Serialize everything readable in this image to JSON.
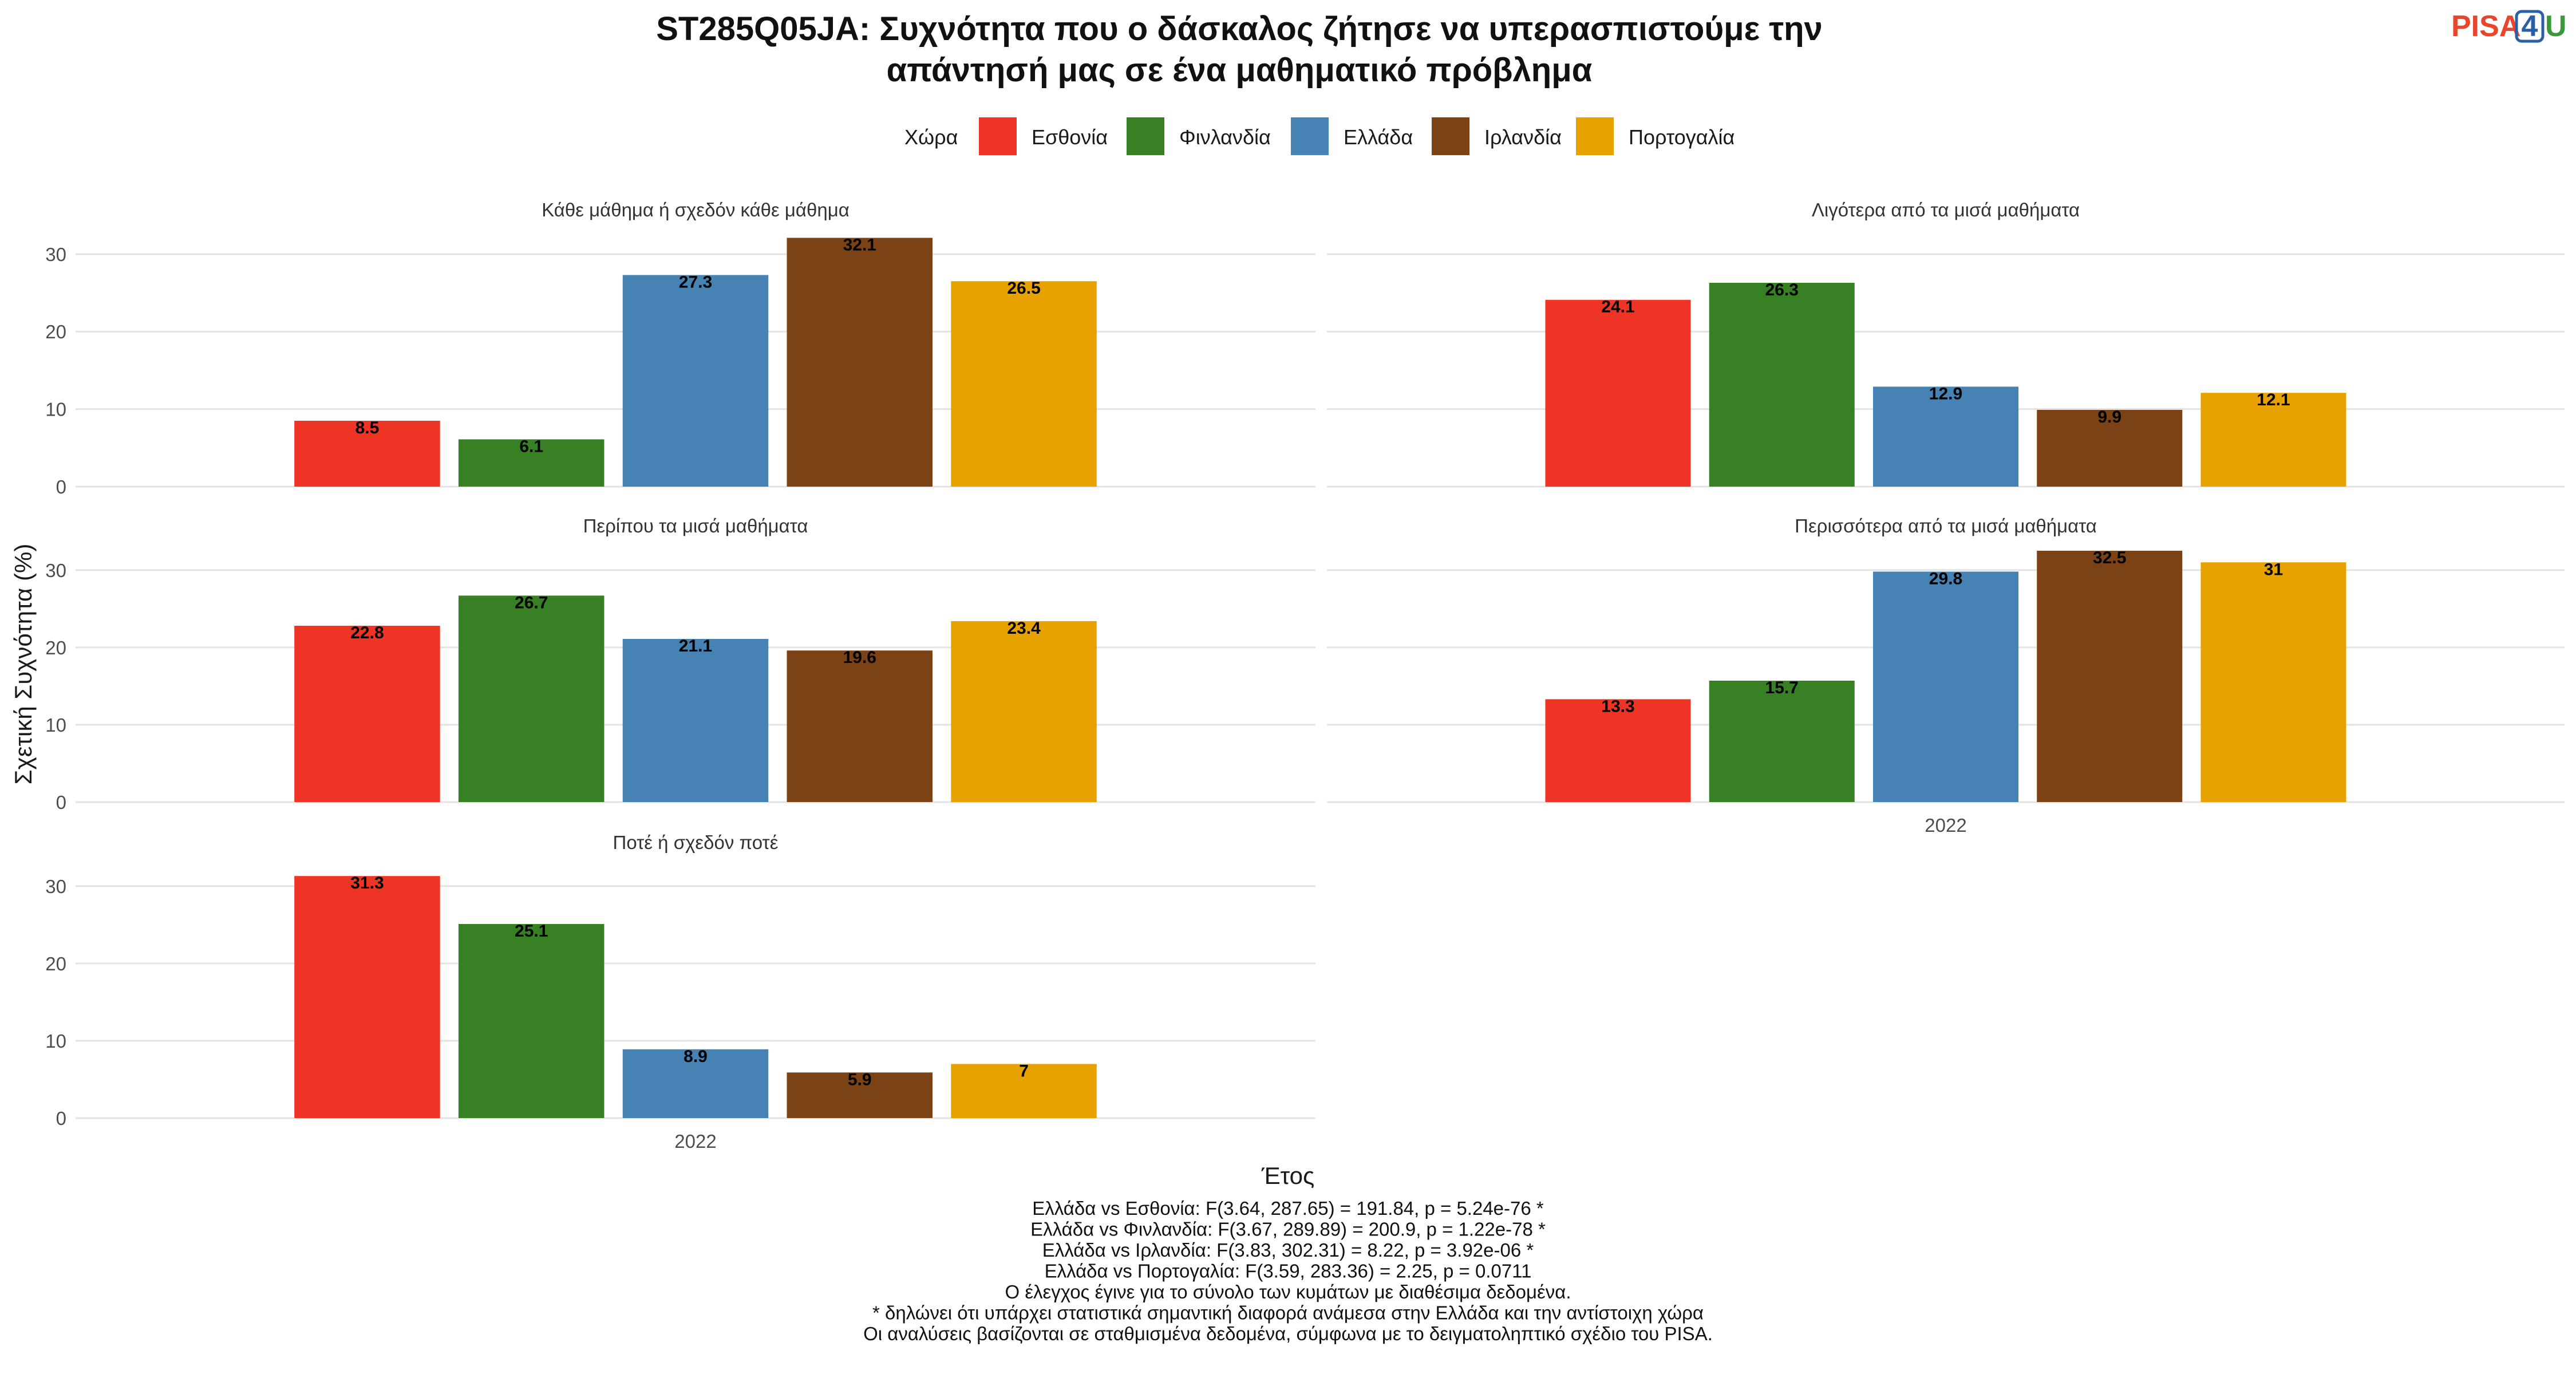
{
  "title": {
    "line1": "ST285Q05JA: Συχνότητα που ο δάσκαλος ζήτησε να υπερασπιστούμε την",
    "line2": "απάντησή μας σε ένα μαθηματικό πρόβλημα"
  },
  "logo": {
    "part1": "PISA",
    "part2": "4",
    "part3": "U",
    "color1": "#e8452c",
    "color2": "#2a5fa8",
    "color3": "#3a9a3a"
  },
  "legend": {
    "title": "Χώρα",
    "items": [
      {
        "label": "Εσθονία",
        "color": "#EE3424"
      },
      {
        "label": "Φινλανδία",
        "color": "#378024"
      },
      {
        "label": "Ελλάδα",
        "color": "#4682B4"
      },
      {
        "label": "Ιρλανδία",
        "color": "#7B4216"
      },
      {
        "label": "Πορτογαλία",
        "color": "#E8A200"
      }
    ]
  },
  "chart_data": {
    "type": "bar",
    "ylabel": "Σχετική Συχνότητα (%)",
    "xlabel": "Έτος",
    "x_category": "2022",
    "ylim": [
      0,
      32.5
    ],
    "yticks": [
      0,
      10,
      20,
      30
    ],
    "series_names": [
      "Εσθονία",
      "Φινλανδία",
      "Ελλάδα",
      "Ιρλανδία",
      "Πορτογαλία"
    ],
    "panels": [
      {
        "title": "Κάθε μάθημα ή σχεδόν κάθε μάθημα",
        "values": [
          8.5,
          6.1,
          27.3,
          32.1,
          26.5
        ],
        "labels": [
          "8.5",
          "6.1",
          "27.3",
          "32.1",
          "26.5"
        ]
      },
      {
        "title": "Λιγότερα από τα μισά μαθήματα",
        "values": [
          24.1,
          26.3,
          12.9,
          9.9,
          12.1
        ],
        "labels": [
          "24.1",
          "26.3",
          "12.9",
          "9.9",
          "12.1"
        ]
      },
      {
        "title": "Περίπου τα μισά μαθήματα",
        "values": [
          22.8,
          26.7,
          21.1,
          19.6,
          23.4
        ],
        "labels": [
          "22.8",
          "26.7",
          "21.1",
          "19.6",
          "23.4"
        ]
      },
      {
        "title": "Περισσότερα από τα μισά μαθήματα",
        "values": [
          13.3,
          15.7,
          29.8,
          32.5,
          31
        ],
        "labels": [
          "13.3",
          "15.7",
          "29.8",
          "32.5",
          "31"
        ]
      },
      {
        "title": "Ποτέ ή σχεδόν ποτέ",
        "values": [
          31.3,
          25.1,
          8.9,
          5.9,
          7
        ],
        "labels": [
          "31.3",
          "25.1",
          "8.9",
          "5.9",
          "7"
        ]
      }
    ]
  },
  "caption": [
    "Ελλάδα vs Εσθονία: F(3.64, 287.65) = 191.84, p = 5.24e-76 *",
    "Ελλάδα vs Φινλανδία: F(3.67, 289.89) = 200.9, p = 1.22e-78 *",
    "Ελλάδα vs Ιρλανδία: F(3.83, 302.31) = 8.22, p = 3.92e-06 *",
    "Ελλάδα vs Πορτογαλία: F(3.59, 283.36) = 2.25, p = 0.0711",
    "Ο έλεγχος έγινε για το σύνολο των κυμάτων με διαθέσιμα δεδομένα.",
    "* δηλώνει ότι υπάρχει στατιστικά σημαντική διαφορά ανάμεσα στην Ελλάδα και την αντίστοιχη χώρα",
    "Οι αναλύσεις βασίζονται σε σταθμισμένα δεδομένα, σύμφωνα με το δειγματοληπτικό σχέδιο του PISA."
  ]
}
